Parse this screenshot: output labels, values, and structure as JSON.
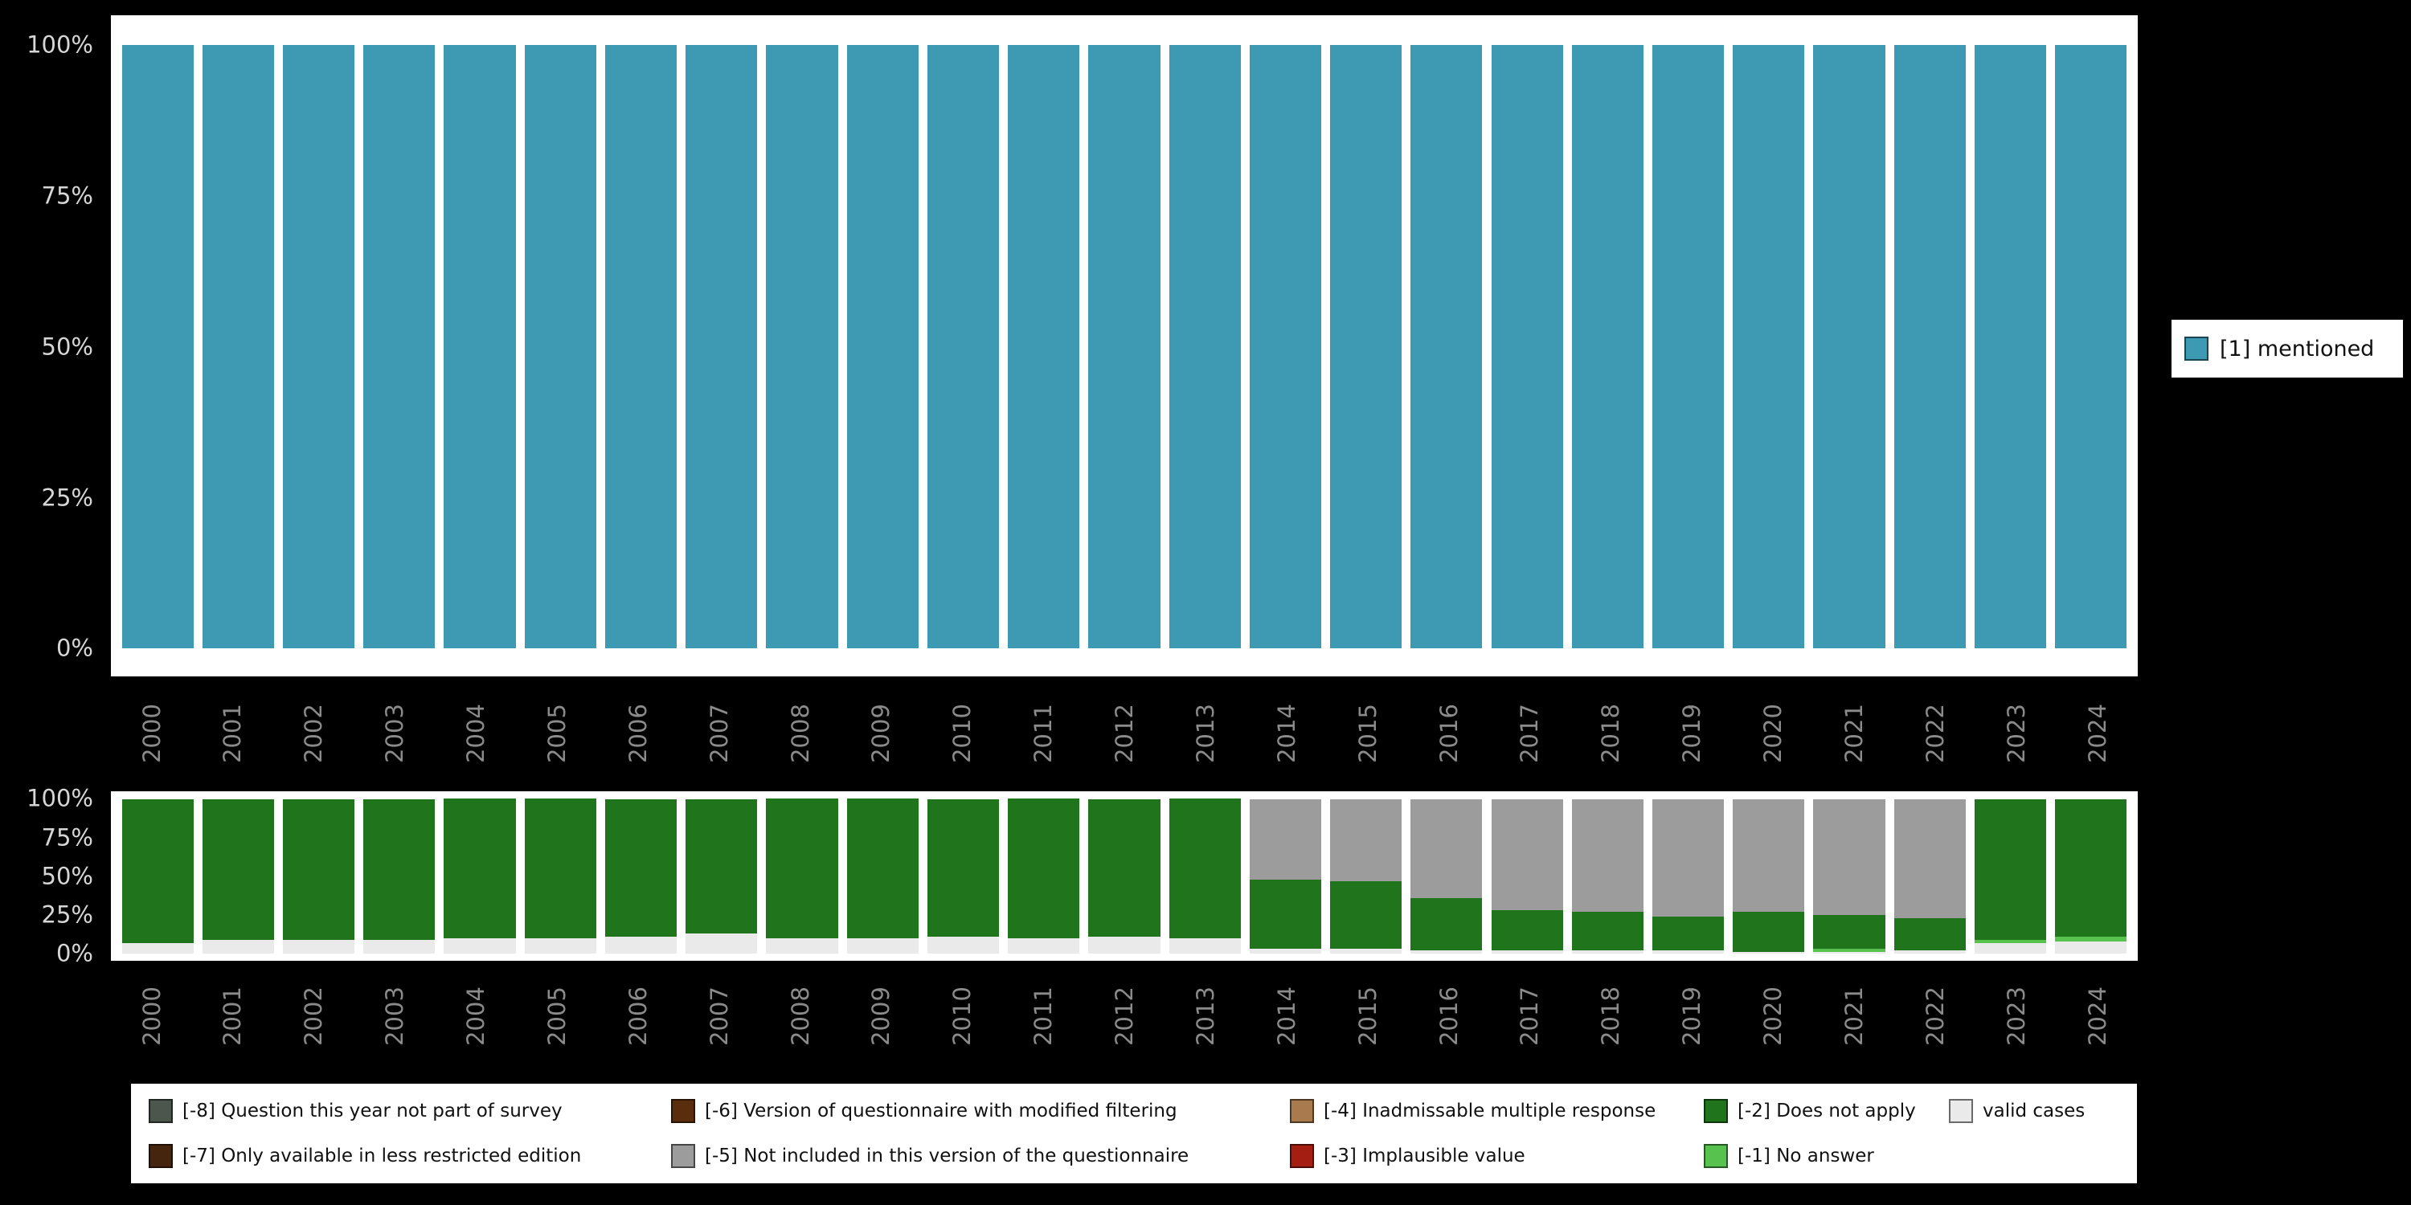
{
  "background": "#000000",
  "axis_style": {
    "ytick_color": "#d6d6d6",
    "xtick_color": "#8b8b8b"
  },
  "chart_data": [
    {
      "id": "mentions-by-year",
      "type": "bar",
      "stacked": true,
      "orientation": "vertical",
      "ylim": [
        0,
        100
      ],
      "grid": false,
      "categories": [
        "2000",
        "2001",
        "2002",
        "2003",
        "2004",
        "2005",
        "2006",
        "2007",
        "2008",
        "2009",
        "2010",
        "2011",
        "2012",
        "2013",
        "2014",
        "2015",
        "2016",
        "2017",
        "2018",
        "2019",
        "2020",
        "2021",
        "2022",
        "2023",
        "2024"
      ],
      "yticks": [
        {
          "value": 100,
          "label": "100%"
        },
        {
          "value": 75,
          "label": "75%"
        },
        {
          "value": 50,
          "label": "50%"
        },
        {
          "value": 25,
          "label": "25%"
        },
        {
          "value": 0,
          "label": "0%"
        }
      ],
      "series": [
        {
          "name": "[1] mentioned",
          "color": "#3d9ab2",
          "values": [
            100,
            100,
            100,
            100,
            100,
            100,
            100,
            100,
            100,
            100,
            100,
            100,
            100,
            100,
            100,
            100,
            100,
            100,
            100,
            100,
            100,
            100,
            100,
            100,
            100
          ]
        }
      ],
      "legend": {
        "position": "right",
        "items": [
          {
            "label": "[1] mentioned",
            "color": "#3d9ab2"
          }
        ]
      }
    },
    {
      "id": "missing-values-by-year",
      "type": "bar",
      "stacked": true,
      "orientation": "vertical",
      "ylim": [
        0,
        100
      ],
      "grid": false,
      "categories": [
        "2000",
        "2001",
        "2002",
        "2003",
        "2004",
        "2005",
        "2006",
        "2007",
        "2008",
        "2009",
        "2010",
        "2011",
        "2012",
        "2013",
        "2014",
        "2015",
        "2016",
        "2017",
        "2018",
        "2019",
        "2020",
        "2021",
        "2022",
        "2023",
        "2024"
      ],
      "yticks": [
        {
          "value": 100,
          "label": "100%"
        },
        {
          "value": 75,
          "label": "75%"
        },
        {
          "value": 50,
          "label": "50%"
        },
        {
          "value": 25,
          "label": "25%"
        },
        {
          "value": 0,
          "label": "0%"
        }
      ],
      "series": [
        {
          "name": "valid cases",
          "color": "#eaeaea",
          "values": [
            7,
            9,
            9,
            9,
            10,
            10,
            11,
            13,
            10,
            10,
            11,
            10,
            11,
            10,
            3,
            3,
            2,
            2,
            2,
            2,
            1,
            1,
            2,
            7,
            8
          ]
        },
        {
          "name": "[-1] No answer",
          "color": "#58c24e",
          "values": [
            0,
            0,
            0,
            0,
            0,
            0,
            0,
            0,
            0,
            0,
            0,
            0,
            0,
            0,
            0,
            0,
            0,
            0,
            0,
            0,
            0,
            2,
            0,
            2,
            3
          ]
        },
        {
          "name": "[-2] Does not apply",
          "color": "#1f741c",
          "values": [
            93,
            91,
            91,
            91,
            90,
            90,
            89,
            87,
            90,
            90,
            89,
            90,
            89,
            90,
            45,
            44,
            34,
            26,
            25,
            22,
            26,
            22,
            21,
            91,
            89
          ]
        },
        {
          "name": "[-5] Not included in this version of the questionnaire",
          "color": "#9c9c9c",
          "values": [
            0,
            0,
            0,
            0,
            0,
            0,
            0,
            0,
            0,
            0,
            0,
            0,
            0,
            0,
            52,
            53,
            64,
            72,
            73,
            76,
            73,
            75,
            77,
            0,
            0
          ]
        }
      ],
      "legend": {
        "position": "bottom",
        "items": [
          {
            "label": "[-8] Question this year not part of survey",
            "color": "#4d564d",
            "col": 1,
            "row": 1
          },
          {
            "label": "[-7] Only available in less restricted edition",
            "color": "#46250f",
            "col": 1,
            "row": 2
          },
          {
            "label": "[-6] Version of questionnaire with modified filtering",
            "color": "#5a2d0c",
            "col": 2,
            "row": 1
          },
          {
            "label": "[-5] Not included in this version of the questionnaire",
            "color": "#9c9c9c",
            "col": 2,
            "row": 2
          },
          {
            "label": "[-4] Inadmissable multiple response",
            "color": "#a97a4e",
            "col": 3,
            "row": 1
          },
          {
            "label": "[-3] Implausible value",
            "color": "#a41e12",
            "col": 3,
            "row": 2
          },
          {
            "label": "[-2] Does not apply",
            "color": "#1f741c",
            "col": 4,
            "row": 1
          },
          {
            "label": "[-1] No answer",
            "color": "#58c24e",
            "col": 4,
            "row": 2
          },
          {
            "label": "valid cases",
            "color": "#eaeaea",
            "col": 5,
            "row": 1
          }
        ]
      }
    }
  ]
}
